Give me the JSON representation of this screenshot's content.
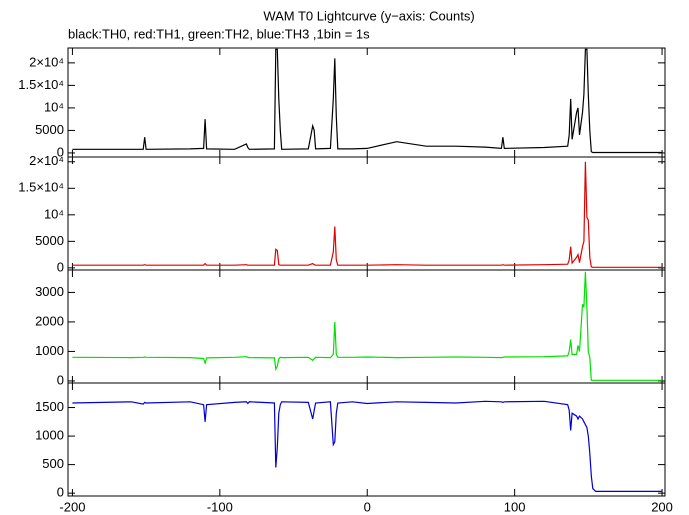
{
  "title": "WAM T0 Lightcurve (y−axis: Counts)",
  "subtitle": "black:TH0, red:TH1, green:TH2, blue:TH3 ,1bin = 1s",
  "chart_data": [
    {
      "type": "line",
      "color": "#000000",
      "xlim": [
        -203,
        202
      ],
      "ylim": [
        -900,
        23300
      ],
      "yticks": [
        0,
        5000,
        {
          "value": 10000,
          "label": "10⁴"
        },
        {
          "value": 15000,
          "label": "1.5×10⁴"
        },
        {
          "value": 20000,
          "label": "2×10⁴"
        }
      ],
      "x": [
        -200,
        -160,
        -152,
        -151,
        -150,
        -120,
        -111,
        -110,
        -109,
        -90,
        -82,
        -81,
        -80,
        -63,
        -62,
        -61,
        -60,
        -59,
        -58,
        -40,
        -37,
        -36,
        -35,
        -25,
        -23,
        -22,
        -21,
        -20,
        -10,
        0,
        20,
        40,
        60,
        80,
        91,
        92,
        93,
        120,
        136,
        137,
        138,
        139,
        142,
        143,
        144,
        146,
        147,
        148,
        149,
        150,
        151,
        152,
        153,
        155,
        160,
        180,
        200
      ],
      "values": [
        800,
        800,
        800,
        3500,
        800,
        900,
        1000,
        7500,
        900,
        800,
        2000,
        1200,
        800,
        900,
        23000,
        23000,
        12000,
        5000,
        800,
        900,
        6000,
        5000,
        900,
        1000,
        12000,
        21000,
        8000,
        900,
        900,
        1000,
        2500,
        1500,
        1500,
        1300,
        1000,
        3500,
        1000,
        1200,
        1500,
        4000,
        12000,
        3000,
        9000,
        10000,
        4000,
        9000,
        13000,
        23000,
        23000,
        13000,
        5000,
        300,
        100,
        100,
        100,
        100,
        100
      ]
    },
    {
      "type": "line",
      "color": "#e00000",
      "xlim": [
        -203,
        202
      ],
      "ylim": [
        -400,
        20900
      ],
      "yticks": [
        0,
        5000,
        {
          "value": 10000,
          "label": "10⁴"
        },
        {
          "value": 15000,
          "label": "1.5×10⁴"
        },
        {
          "value": 20000,
          "label": "2×10⁴"
        }
      ],
      "x": [
        -200,
        -160,
        -152,
        -151,
        -150,
        -120,
        -111,
        -110,
        -109,
        -90,
        -82,
        -81,
        -80,
        -63,
        -62,
        -61,
        -60,
        -59,
        -58,
        -40,
        -37,
        -36,
        -35,
        -25,
        -23,
        -22,
        -21,
        -20,
        -10,
        0,
        20,
        40,
        60,
        80,
        91,
        92,
        93,
        120,
        136,
        137,
        138,
        139,
        142,
        143,
        144,
        146,
        147,
        148,
        149,
        150,
        151,
        152,
        153,
        155,
        160,
        180,
        200
      ],
      "values": [
        500,
        500,
        500,
        600,
        500,
        500,
        500,
        800,
        500,
        500,
        600,
        500,
        500,
        500,
        3500,
        3300,
        600,
        500,
        500,
        500,
        800,
        600,
        500,
        500,
        3000,
        7800,
        1500,
        500,
        500,
        500,
        600,
        500,
        500,
        500,
        500,
        600,
        500,
        600,
        700,
        1500,
        4000,
        900,
        2000,
        2500,
        1000,
        4000,
        5000,
        20000,
        9500,
        9000,
        2000,
        200,
        100,
        100,
        100,
        100,
        100
      ]
    },
    {
      "type": "line",
      "color": "#00e000",
      "xlim": [
        -203,
        202
      ],
      "ylim": [
        -70,
        3760
      ],
      "yticks": [
        0,
        1000,
        2000,
        3000
      ],
      "x": [
        -200,
        -160,
        -152,
        -151,
        -150,
        -120,
        -111,
        -110,
        -109,
        -90,
        -82,
        -81,
        -80,
        -63,
        -62,
        -61,
        -60,
        -59,
        -58,
        -40,
        -37,
        -36,
        -35,
        -25,
        -23,
        -22,
        -21,
        -20,
        -10,
        0,
        20,
        40,
        60,
        80,
        91,
        92,
        93,
        120,
        136,
        137,
        138,
        139,
        142,
        143,
        144,
        146,
        147,
        148,
        149,
        150,
        151,
        152,
        153,
        155,
        160,
        180,
        200
      ],
      "values": [
        800,
        790,
        800,
        810,
        800,
        790,
        760,
        600,
        780,
        800,
        820,
        800,
        790,
        780,
        400,
        500,
        750,
        800,
        790,
        800,
        700,
        750,
        800,
        790,
        900,
        2000,
        900,
        800,
        800,
        810,
        790,
        800,
        810,
        800,
        790,
        800,
        810,
        820,
        850,
        1000,
        1400,
        900,
        900,
        1200,
        1000,
        2600,
        2500,
        3700,
        2500,
        1000,
        800,
        20,
        20,
        20,
        20,
        20,
        20
      ]
    },
    {
      "type": "line",
      "color": "#0000d0",
      "xlim": [
        -203,
        202
      ],
      "ylim": [
        -50,
        1930
      ],
      "yticks": [
        0,
        500,
        1000,
        1500
      ],
      "x": [
        -200,
        -160,
        -152,
        -151,
        -150,
        -120,
        -111,
        -110,
        -109,
        -90,
        -82,
        -81,
        -80,
        -63,
        -62,
        -61,
        -60,
        -59,
        -58,
        -40,
        -37,
        -36,
        -35,
        -25,
        -23,
        -22,
        -21,
        -20,
        -10,
        0,
        20,
        40,
        60,
        80,
        91,
        92,
        93,
        120,
        136,
        137,
        138,
        139,
        142,
        143,
        144,
        146,
        147,
        148,
        149,
        150,
        151,
        152,
        153,
        155,
        160,
        180,
        200
      ],
      "values": [
        1580,
        1600,
        1560,
        1590,
        1580,
        1600,
        1550,
        1250,
        1550,
        1590,
        1600,
        1570,
        1600,
        1580,
        450,
        800,
        1400,
        1550,
        1600,
        1590,
        1300,
        1450,
        1580,
        1600,
        850,
        900,
        1400,
        1580,
        1600,
        1570,
        1600,
        1590,
        1580,
        1610,
        1600,
        1590,
        1600,
        1610,
        1550,
        1450,
        1100,
        1400,
        1350,
        1300,
        1350,
        1300,
        1250,
        1200,
        1150,
        1000,
        700,
        300,
        80,
        30,
        30,
        30,
        30
      ],
      "xticks": [
        -200,
        -100,
        0,
        100,
        200
      ]
    }
  ]
}
